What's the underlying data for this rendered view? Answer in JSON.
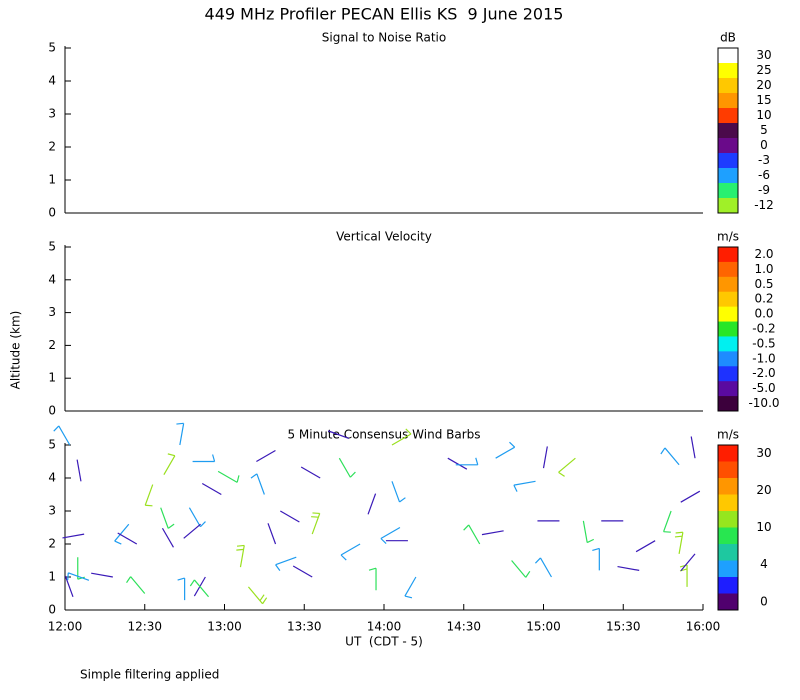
{
  "header": {
    "title": "449 MHz Profiler PECAN Ellis KS  9 June 2015"
  },
  "ylabel": "Altitude (km)",
  "footnote": "Simple filtering applied",
  "chart_data": [
    {
      "type": "heatmap",
      "title": "Signal to Noise Ratio",
      "xlim": [
        12,
        16
      ],
      "ylim": [
        0,
        5
      ],
      "yticks": [
        0,
        1,
        2,
        3,
        4,
        5
      ],
      "colorbar": {
        "unit": "dB",
        "colors": [
          "#ffffff",
          "#ffff00",
          "#ffc800",
          "#ff9600",
          "#ff3c00",
          "#4b0a4b",
          "#6a0a8a",
          "#1e3cff",
          "#1ea0ff",
          "#28f070",
          "#a0f028"
        ],
        "ticks": [
          30,
          25,
          20,
          15,
          10,
          5,
          0,
          -3,
          -6,
          -9,
          -12
        ]
      }
    },
    {
      "type": "heatmap",
      "title": "Vertical Velocity",
      "xlim": [
        12,
        16
      ],
      "ylim": [
        0,
        5
      ],
      "yticks": [
        0,
        1,
        2,
        3,
        4,
        5
      ],
      "colorbar": {
        "unit": "m/s",
        "colors": [
          "#ff1e00",
          "#ff6400",
          "#ff9600",
          "#ffc800",
          "#ffff00",
          "#28e628",
          "#00f0f0",
          "#1e8cff",
          "#1e32ff",
          "#5a0aa0",
          "#3c003c"
        ],
        "ticks": [
          {
            "value": 2,
            "label": "2.0"
          },
          {
            "value": 1,
            "label": "1.0"
          },
          0.5,
          0.2,
          {
            "value": 0,
            "label": "0.0"
          },
          -0.2,
          -0.5,
          {
            "value": -1,
            "label": "-1.0"
          },
          {
            "value": -2,
            "label": "-2.0"
          },
          {
            "value": -5,
            "label": "-5.0"
          },
          {
            "value": -10,
            "label": "-10.0"
          }
        ]
      }
    },
    {
      "type": "barb",
      "title": "5 Minute Consensus Wind Barbs",
      "xlabel": "UT  (CDT - 5)",
      "xlim": [
        12,
        16
      ],
      "ylim": [
        0,
        5
      ],
      "yticks": [
        0,
        1,
        2,
        3,
        4,
        5
      ],
      "xticks": [
        {
          "value": 12,
          "label": "12:00"
        },
        {
          "value": 12.5,
          "label": "12:30"
        },
        {
          "value": 13,
          "label": "13:00"
        },
        {
          "value": 13.5,
          "label": "13:30"
        },
        {
          "value": 14,
          "label": "14:00"
        },
        {
          "value": 14.5,
          "label": "14:30"
        },
        {
          "value": 15,
          "label": "15:00"
        },
        {
          "value": 15.5,
          "label": "15:30"
        },
        {
          "value": 16,
          "label": "16:00"
        }
      ],
      "colorbar": {
        "unit": "m/s",
        "colors": [
          "#ff1e00",
          "#ff5000",
          "#ff9600",
          "#ffc800",
          "#96e61e",
          "#28e650",
          "#1ec8a0",
          "#1ea0ff",
          "#1e1eff",
          "#50006e"
        ],
        "ticks": [
          30,
          20,
          10,
          4,
          0
        ]
      },
      "barbs": {
        "x": [
          12.03,
          12.1,
          12.12,
          12.08,
          12.05,
          12.15,
          12.3,
          12.4,
          12.45,
          12.5,
          12.55,
          12.62,
          12.6,
          12.68,
          12.72,
          12.8,
          12.78,
          12.85,
          12.88,
          12.75,
          12.9,
          12.96,
          12.98,
          13.1,
          13.15,
          13.2,
          13.25,
          13.32,
          13.35,
          13.45,
          13.55,
          13.6,
          13.55,
          13.72,
          13.78,
          13.9,
          13.85,
          13.95,
          14.05,
          14.05,
          14.1,
          14.15,
          14.2,
          14.4,
          14.45,
          14.6,
          14.7,
          14.75,
          14.8,
          14.95,
          15.0,
          15.1,
          15.05,
          15.2,
          15.25,
          15.35,
          15.5,
          15.6,
          15.7,
          15.85,
          15.8,
          15.85,
          15.9,
          15.95,
          15.98,
          15.95
        ],
        "y": [
          5.0,
          3.9,
          2.3,
          1.6,
          0.4,
          0.9,
          1.0,
          2.6,
          2.0,
          0.5,
          3.8,
          4.1,
          3.1,
          1.9,
          5.0,
          4.5,
          3.1,
          2.6,
          1.0,
          0.3,
          0.4,
          4.2,
          3.5,
          1.3,
          0.7,
          4.5,
          3.5,
          2.0,
          3.0,
          1.6,
          2.3,
          4.0,
          1.0,
          4.6,
          5.2,
          2.9,
          2.0,
          0.6,
          5.0,
          3.9,
          2.5,
          2.1,
          1.0,
          4.6,
          4.4,
          2.0,
          4.6,
          2.4,
          1.5,
          3.9,
          4.3,
          2.7,
          1.0,
          4.6,
          2.7,
          1.2,
          2.7,
          1.2,
          2.1,
          4.4,
          3.0,
          1.7,
          0.7,
          4.6,
          3.6,
          1.7
        ],
        "direction": [
          330,
          350,
          260,
          180,
          340,
          290,
          280,
          220,
          300,
          320,
          200,
          30,
          160,
          330,
          10,
          90,
          150,
          230,
          210,
          0,
          320,
          120,
          300,
          10,
          140,
          60,
          340,
          340,
          120,
          250,
          20,
          300,
          300,
          150,
          290,
          20,
          240,
          0,
          60,
          160,
          240,
          270,
          210,
          120,
          90,
          330,
          60,
          260,
          140,
          260,
          10,
          270,
          330,
          230,
          170,
          0,
          270,
          280,
          240,
          320,
          200,
          10,
          0,
          350,
          240,
          220
        ],
        "speed": [
          6,
          3,
          3,
          5,
          2,
          6,
          3,
          7,
          2,
          7,
          8,
          8,
          7,
          3,
          6,
          6,
          6,
          3,
          3,
          6,
          9,
          7,
          3,
          10,
          10,
          3,
          7,
          3,
          3,
          6,
          10,
          3,
          3,
          8,
          3,
          3,
          6,
          9,
          9,
          7,
          7,
          3,
          7,
          4,
          7,
          9,
          6,
          3,
          9,
          6,
          3,
          3,
          6,
          7,
          8,
          6,
          3,
          3,
          3,
          6,
          7,
          10,
          10,
          3,
          3,
          3
        ],
        "colors": [
          "#1e9cf0",
          "#3a1ab8",
          "#3a1ab8",
          "#2ee05a",
          "#3a1ab8",
          "#1e9cf0",
          "#3a1ab8",
          "#1e9cf0",
          "#3a1ab8",
          "#2ee05a",
          "#9ae01e",
          "#9ae01e",
          "#2ee05a",
          "#3a1ab8",
          "#1e9cf0",
          "#1e9cf0",
          "#1e9cf0",
          "#3a1ab8",
          "#3a1ab8",
          "#1e9cf0",
          "#2ee05a",
          "#2ee05a",
          "#3a1ab8",
          "#9ae01e",
          "#9ae01e",
          "#3a1ab8",
          "#1e9cf0",
          "#3a1ab8",
          "#3a1ab8",
          "#1e9cf0",
          "#9ae01e",
          "#3a1ab8",
          "#3a1ab8",
          "#2ee05a",
          "#3a1ab8",
          "#3a1ab8",
          "#1e9cf0",
          "#2ee05a",
          "#9ae01e",
          "#1e9cf0",
          "#1e9cf0",
          "#3a1ab8",
          "#1e9cf0",
          "#3a1ab8",
          "#1e9cf0",
          "#2ee05a",
          "#1e9cf0",
          "#3a1ab8",
          "#2ee05a",
          "#1e9cf0",
          "#3a1ab8",
          "#3a1ab8",
          "#1e9cf0",
          "#9ae01e",
          "#2ee05a",
          "#1e9cf0",
          "#3a1ab8",
          "#3a1ab8",
          "#3a1ab8",
          "#1e9cf0",
          "#2ee05a",
          "#9ae01e",
          "#9ae01e",
          "#3a1ab8",
          "#3a1ab8",
          "#3a1ab8"
        ]
      }
    }
  ]
}
